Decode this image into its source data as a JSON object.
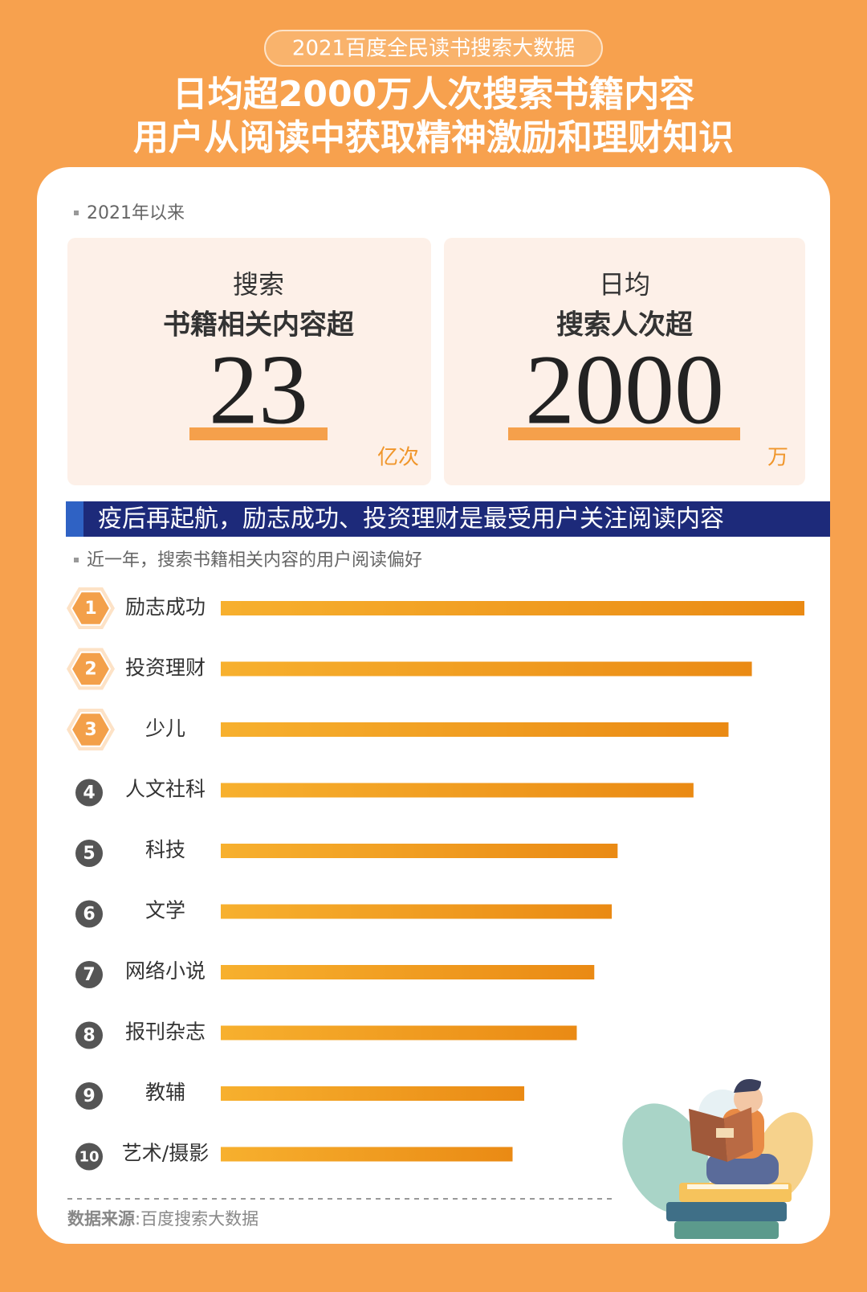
{
  "header": {
    "badge": "2021百度全民读书搜索大数据",
    "title_line1": "日均超2000万人次搜索书籍内容",
    "title_line2": "用户从阅读中获取精神激励和理财知识"
  },
  "stats": {
    "label": "2021年以来",
    "cards": [
      {
        "line1": "搜索",
        "line2": "书籍相关内容超",
        "number": 23,
        "unit": "亿次"
      },
      {
        "line1": "日均",
        "line2": "搜索人次超",
        "number": 2000,
        "unit": "万"
      }
    ]
  },
  "banner": "疫后再起航，励志成功、投资理财是最受用户关注阅读内容",
  "chart_data": {
    "type": "bar",
    "subtitle": "近一年，搜索书籍相关内容的用户阅读偏好",
    "ranks": [
      1,
      2,
      3,
      4,
      5,
      6,
      7,
      8,
      9,
      10
    ],
    "categories": [
      "励志成功",
      "投资理财",
      "少儿",
      "人文社科",
      "科技",
      "文学",
      "网络小说",
      "报刊杂志",
      "教辅",
      "艺术/摄影"
    ],
    "values": [
      100,
      91,
      87,
      81,
      68,
      67,
      64,
      61,
      52,
      50
    ],
    "xlim": [
      0,
      100
    ],
    "color": "#f0961c"
  },
  "source": {
    "label": "数据来源",
    "text": ":百度搜索大数据"
  }
}
